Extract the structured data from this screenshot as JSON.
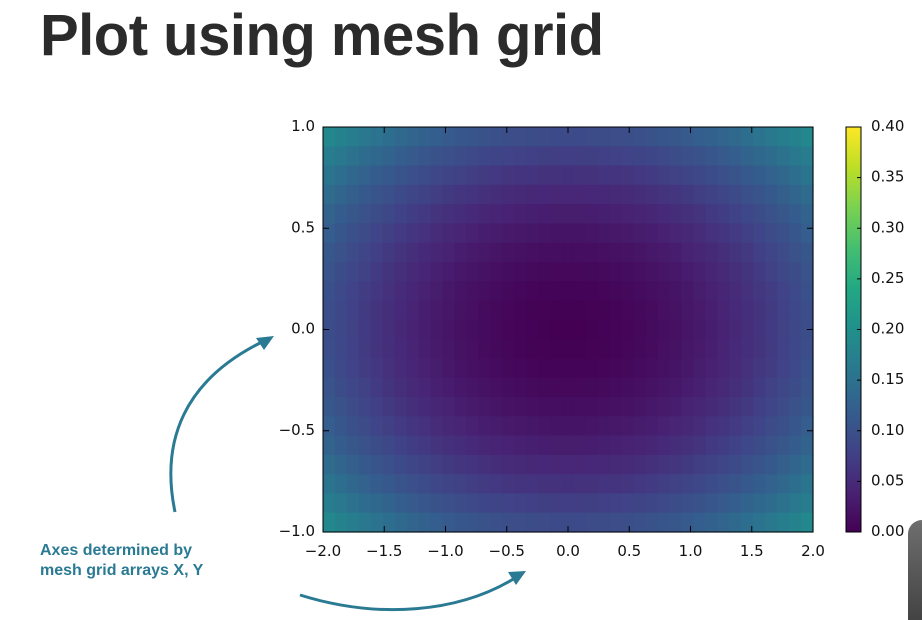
{
  "slide": {
    "title": "Plot using mesh grid"
  },
  "annotation": {
    "line1": "Axes determined by",
    "line2": "mesh grid arrays X, Y"
  },
  "chart_data": {
    "type": "heatmap",
    "function": "(x^2/4 + y^2) / 10",
    "x_range": [
      -2.0,
      2.0
    ],
    "y_range": [
      -1.0,
      1.0
    ],
    "grid": {
      "nx": 41,
      "ny": 21
    },
    "xticks": [
      -2.0,
      -1.5,
      -1.0,
      -0.5,
      0.0,
      0.5,
      1.0,
      1.5,
      2.0
    ],
    "xtick_labels": [
      "−2.0",
      "−1.5",
      "−1.0",
      "−0.5",
      "0.0",
      "0.5",
      "1.0",
      "1.5",
      "2.0"
    ],
    "yticks": [
      1.0,
      0.5,
      0.0,
      -0.5,
      -1.0
    ],
    "ytick_labels": [
      "1.0",
      "0.5",
      "0.0",
      "−0.5",
      "−1.0"
    ],
    "colorbar": {
      "range": [
        0.0,
        0.4
      ],
      "ticks": [
        0.4,
        0.35,
        0.3,
        0.25,
        0.2,
        0.15,
        0.1,
        0.05,
        0.0
      ],
      "tick_labels": [
        "0.40",
        "0.35",
        "0.30",
        "0.25",
        "0.20",
        "0.15",
        "0.10",
        "0.05",
        "0.00"
      ],
      "colormap": "viridis"
    },
    "colors": {
      "arrow": "#2a7a93"
    }
  }
}
